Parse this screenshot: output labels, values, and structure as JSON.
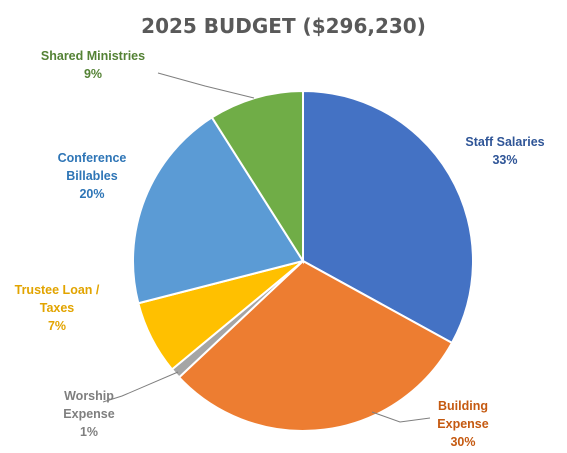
{
  "chart_data": {
    "type": "pie",
    "title": "2025 BUDGET ($296,230)",
    "start_angle_deg": 0,
    "direction": "clockwise",
    "slices": [
      {
        "name": "Staff Salaries",
        "value": 33,
        "label": "33%",
        "color": "#4472C4",
        "label_color": "#2F5597"
      },
      {
        "name": "Building Expense",
        "value": 30,
        "label": "30%",
        "color": "#ED7D31",
        "label_color": "#C55A11"
      },
      {
        "name": "Worship Expense",
        "value": 1,
        "label": "1%",
        "color": "#A5A5A5",
        "label_color": "#7F7F7F"
      },
      {
        "name": "Trustee Loan / Taxes",
        "value": 7,
        "label": "7%",
        "color": "#FFC000",
        "label_color": "#E2A400"
      },
      {
        "name": "Conference Billables",
        "value": 20,
        "label": "20%",
        "color": "#5B9BD5",
        "label_color": "#2E75B6"
      },
      {
        "name": "Shared Ministries",
        "value": 9,
        "label": "9%",
        "color": "#70AD47",
        "label_color": "#548235"
      }
    ],
    "data_labels": [
      {
        "lines": [
          "Staff Salaries",
          "33%"
        ]
      },
      {
        "lines": [
          "Building",
          "Expense",
          "30%"
        ]
      },
      {
        "lines": [
          "Worship",
          "Expense",
          "1%"
        ]
      },
      {
        "lines": [
          "Trustee Loan /",
          "Taxes",
          "7%"
        ]
      },
      {
        "lines": [
          "Conference",
          "Billables",
          "20%"
        ]
      },
      {
        "lines": [
          "Shared Ministries",
          "9%"
        ]
      }
    ]
  }
}
